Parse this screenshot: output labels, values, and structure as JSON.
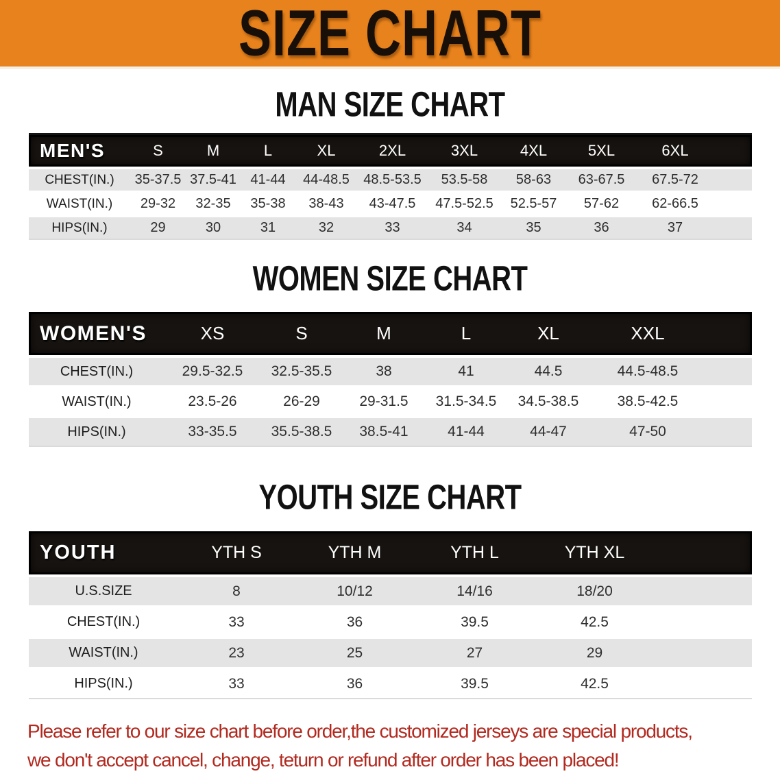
{
  "banner": {
    "title": "SIZE CHART"
  },
  "colors": {
    "banner_orange": "#e8821c",
    "header_black": "#171310",
    "row_gray": "#e4e4e4",
    "disclaimer_red": "#b2291f"
  },
  "sections": [
    {
      "id": "men",
      "heading": "MAN SIZE CHART",
      "header_label": "MEN'S",
      "columns": [
        "S",
        "M",
        "L",
        "XL",
        "2XL",
        "3XL",
        "4XL",
        "5XL",
        "6XL"
      ],
      "rows": [
        {
          "label": "CHEST(IN.)",
          "values": [
            "35-37.5",
            "37.5-41",
            "41-44",
            "44-48.5",
            "48.5-53.5",
            "53.5-58",
            "58-63",
            "63-67.5",
            "67.5-72"
          ]
        },
        {
          "label": "WAIST(IN.)",
          "values": [
            "29-32",
            "32-35",
            "35-38",
            "38-43",
            "43-47.5",
            "47.5-52.5",
            "52.5-57",
            "57-62",
            "62-66.5"
          ]
        },
        {
          "label": "HIPS(IN.)",
          "values": [
            "29",
            "30",
            "31",
            "32",
            "33",
            "34",
            "35",
            "36",
            "37"
          ]
        }
      ]
    },
    {
      "id": "women",
      "heading": "WOMEN SIZE CHART",
      "header_label": "WOMEN'S",
      "columns": [
        "XS",
        "S",
        "M",
        "L",
        "XL",
        "XXL"
      ],
      "rows": [
        {
          "label": "CHEST(IN.)",
          "values": [
            "29.5-32.5",
            "32.5-35.5",
            "38",
            "41",
            "44.5",
            "44.5-48.5"
          ]
        },
        {
          "label": "WAIST(IN.)",
          "values": [
            "23.5-26",
            "26-29",
            "29-31.5",
            "31.5-34.5",
            "34.5-38.5",
            "38.5-42.5"
          ]
        },
        {
          "label": "HIPS(IN.)",
          "values": [
            "33-35.5",
            "35.5-38.5",
            "38.5-41",
            "41-44",
            "44-47",
            "47-50"
          ]
        }
      ]
    },
    {
      "id": "youth",
      "heading": "YOUTH SIZE CHART",
      "header_label": "YOUTH",
      "columns": [
        "YTH S",
        "YTH M",
        "YTH L",
        "YTH XL"
      ],
      "rows": [
        {
          "label": "U.S.SIZE",
          "values": [
            "8",
            "10/12",
            "14/16",
            "18/20"
          ]
        },
        {
          "label": "CHEST(IN.)",
          "values": [
            "33",
            "36",
            "39.5",
            "42.5"
          ]
        },
        {
          "label": "WAIST(IN.)",
          "values": [
            "23",
            "25",
            "27",
            "29"
          ]
        },
        {
          "label": "HIPS(IN.)",
          "values": [
            "33",
            "36",
            "39.5",
            "42.5"
          ]
        }
      ]
    }
  ],
  "disclaimer": {
    "line1": "Please refer to our size chart before order,the customized jerseys are special products,",
    "line2": "we don't accept cancel, change, teturn or refund after order has been placed!"
  }
}
